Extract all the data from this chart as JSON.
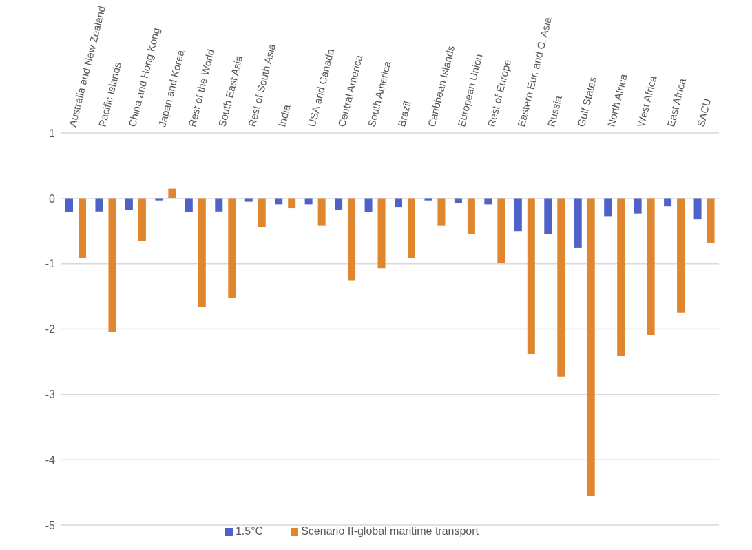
{
  "chart_data": {
    "type": "bar",
    "categories": [
      "Australia and New Zealand",
      "Pacific Islands",
      "China and Hong Kong",
      "Japan and Korea",
      "Rest of the World",
      "South East Asia",
      "Rest of South Asia",
      "India",
      "USA and Canada",
      "Central America",
      "South America",
      "Brazil",
      "Caribbean Islands",
      "European Union",
      "Rest of Europe",
      "Eastern Eur. and C. Asia",
      "Russia",
      "Gulf States",
      "North Africa",
      "West Africa",
      "East Africa",
      "SACU"
    ],
    "series": [
      {
        "name": "1.5°C",
        "color": "#4f62c8",
        "values": [
          -0.21,
          -0.2,
          -0.18,
          -0.03,
          -0.21,
          -0.2,
          -0.05,
          -0.09,
          -0.09,
          -0.17,
          -0.21,
          -0.14,
          -0.03,
          -0.07,
          -0.09,
          -0.5,
          -0.54,
          -0.76,
          -0.28,
          -0.23,
          -0.12,
          -0.32
        ]
      },
      {
        "name": "Scenario II-global maritime transport",
        "color": "#e0862e",
        "values": [
          -0.92,
          -2.04,
          -0.65,
          0.15,
          -1.66,
          -1.52,
          -0.44,
          -0.15,
          -0.42,
          -1.25,
          -1.07,
          -0.92,
          -0.42,
          -0.54,
          -0.99,
          -2.38,
          -2.73,
          -4.55,
          -2.41,
          -2.09,
          -1.75,
          -0.68
        ]
      }
    ],
    "ylim": [
      -5,
      1
    ],
    "yticks": [
      -5,
      -4,
      -3,
      -2,
      -1,
      0,
      1
    ],
    "grid": "y",
    "legend": "bottom"
  }
}
